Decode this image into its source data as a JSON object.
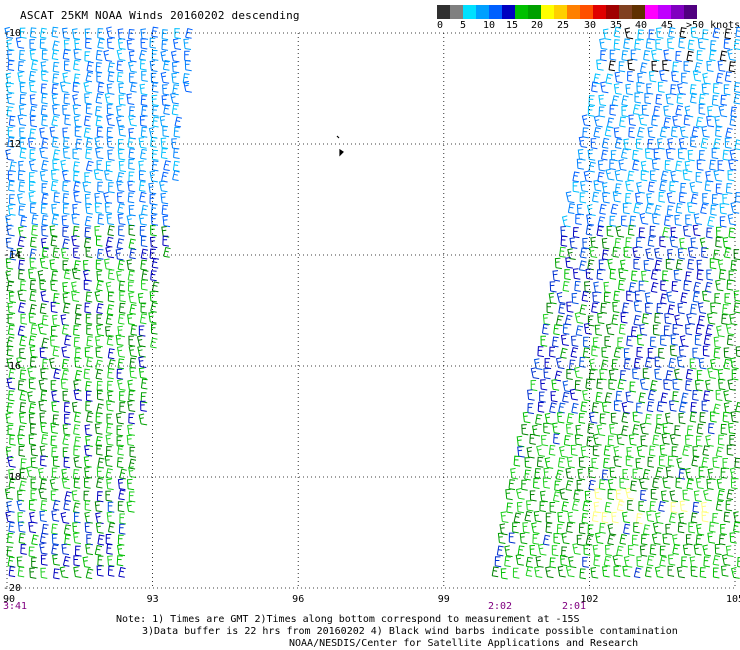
{
  "title": "ASCAT 25KM NOAA Winds 20160202 descending",
  "colorbar": {
    "colors": [
      "#303030",
      "#808080",
      "#00e0ff",
      "#00a0ff",
      "#0060ff",
      "#0000c0",
      "#00c000",
      "#00a000",
      "#ffff00",
      "#ffd000",
      "#ff8000",
      "#ff5000",
      "#e00000",
      "#a00000",
      "#804020",
      "#603000",
      "#ff00ff",
      "#c000ff",
      "#8000c0",
      "#500080"
    ],
    "labels": [
      "0",
      "5",
      "10",
      "15",
      "20",
      "25",
      "30",
      "35",
      "40",
      "45",
      ">50 knots"
    ]
  },
  "axes": {
    "lat_labels": [
      "-10",
      "-12",
      "-14",
      "-16",
      "-18",
      "-20"
    ],
    "lon_labels": [
      "90",
      "93",
      "96",
      "99",
      "102",
      "105"
    ]
  },
  "time_labels": [
    "3:41",
    "2:02",
    "2:01"
  ],
  "notes": [
    "Note: 1) Times are GMT 2)Times along bottom correspond to measurement at -15S",
    "3)Data buffer is 22 hrs from 20160202 4) Black wind barbs indicate possible contamination",
    "NOAA/NESDIS/Center for Satellite Applications and Research"
  ]
}
